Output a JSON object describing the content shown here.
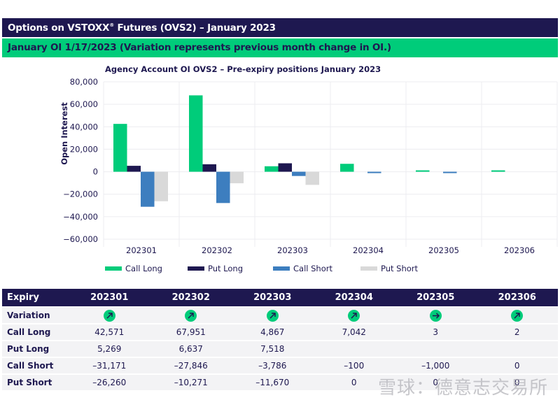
{
  "header": {
    "title_main": "Options on VSTOXX",
    "title_reg": "®",
    "title_rest": " Futures (OVS2) – January 2023",
    "subtitle": "January OI 1/17/2023 (Variation represents previous month change in OI.)"
  },
  "colors": {
    "navy": "#1e1850",
    "green": "#00cc7a",
    "call_long": "#00cc7a",
    "put_long": "#1e1850",
    "call_short": "#3d7ebf",
    "put_short": "#d9d9d9"
  },
  "chart_data": {
    "type": "bar",
    "title": "Agency Account OI OVS2 – Pre-expiry positions January 2023",
    "xlabel": "",
    "ylabel": "Open Interest",
    "ylim": [
      -60000,
      80000
    ],
    "yticks": [
      80000,
      60000,
      40000,
      20000,
      0,
      -20000,
      -40000,
      -60000
    ],
    "ytick_labels": [
      "80,000",
      "60,000",
      "40,000",
      "20,000",
      "0",
      "−20,000",
      "−40,000",
      "−60,000"
    ],
    "grid": true,
    "legend_position": "bottom",
    "categories": [
      "202301",
      "202302",
      "202303",
      "202304",
      "202305",
      "202306"
    ],
    "series": [
      {
        "name": "Call Long",
        "color": "#00cc7a",
        "values": [
          42571,
          67951,
          4867,
          7042,
          3,
          2
        ]
      },
      {
        "name": "Put Long",
        "color": "#1e1850",
        "values": [
          5269,
          6637,
          7518,
          0,
          0,
          0
        ]
      },
      {
        "name": "Call Short",
        "color": "#3d7ebf",
        "values": [
          -31171,
          -27846,
          -3786,
          -100,
          -1000,
          0
        ]
      },
      {
        "name": "Put Short",
        "color": "#d9d9d9",
        "values": [
          -26260,
          -10271,
          -11670,
          0,
          0,
          0
        ]
      }
    ]
  },
  "table": {
    "header": [
      "Expiry",
      "202301",
      "202302",
      "202303",
      "202304",
      "202305",
      "202306"
    ],
    "variation_label": "Variation",
    "variation": [
      "up-right-arrow-icon",
      "up-right-arrow-icon",
      "up-right-arrow-icon",
      "up-right-arrow-icon",
      "right-arrow-icon",
      "up-right-arrow-icon"
    ],
    "rows": [
      {
        "label": "Call Long",
        "values": [
          "42,571",
          "67,951",
          "4,867",
          "7,042",
          "3",
          "2"
        ]
      },
      {
        "label": "Put Long",
        "values": [
          "5,269",
          "6,637",
          "7,518",
          "",
          "",
          ""
        ]
      },
      {
        "label": "Call Short",
        "values": [
          "–31,171",
          "–27,846",
          "–3,786",
          "–100",
          "–1,000",
          "0"
        ]
      },
      {
        "label": "Put Short",
        "values": [
          "–26,260",
          "–10,271",
          "–11,670",
          "0",
          "0",
          "0"
        ]
      }
    ]
  },
  "watermark": "雪球：德意志交易所"
}
